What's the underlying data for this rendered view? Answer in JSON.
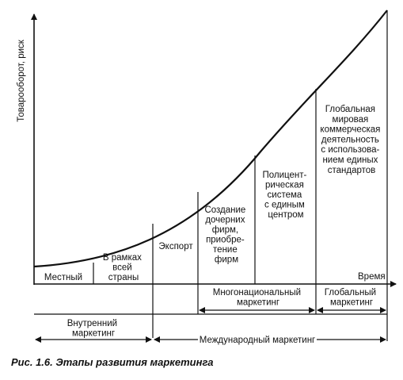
{
  "axes": {
    "y_label": "Товарооборот, риск",
    "x_label": "Время"
  },
  "stages": [
    {
      "id": "local",
      "lines": [
        "Местный"
      ]
    },
    {
      "id": "national",
      "lines": [
        "В рамках",
        "всей",
        "страны"
      ]
    },
    {
      "id": "export",
      "lines": [
        "Экспорт"
      ]
    },
    {
      "id": "subsidiaries",
      "lines": [
        "Создание",
        "дочерних",
        "фирм,",
        "приобре-",
        "тение",
        "фирм"
      ]
    },
    {
      "id": "polycentric",
      "lines": [
        "Полицент-",
        "рическая",
        "система",
        "с единым",
        "центром"
      ]
    },
    {
      "id": "global",
      "lines": [
        "Глобальная",
        "мировая",
        "коммерческая",
        "деятельность",
        "с использова-",
        "нием единых",
        "стандартов"
      ]
    }
  ],
  "groups": {
    "domestic": {
      "lines": [
        "Внутренний",
        "маркетинг"
      ]
    },
    "multinational": {
      "lines": [
        "Многонациональный",
        "маркетинг"
      ]
    },
    "global": {
      "lines": [
        "Глобальный",
        "маркетинг"
      ]
    },
    "international": {
      "lines": [
        "Международный маркетинг"
      ]
    }
  },
  "caption": "Рис. 1.6. Этапы развития маркетинга"
}
